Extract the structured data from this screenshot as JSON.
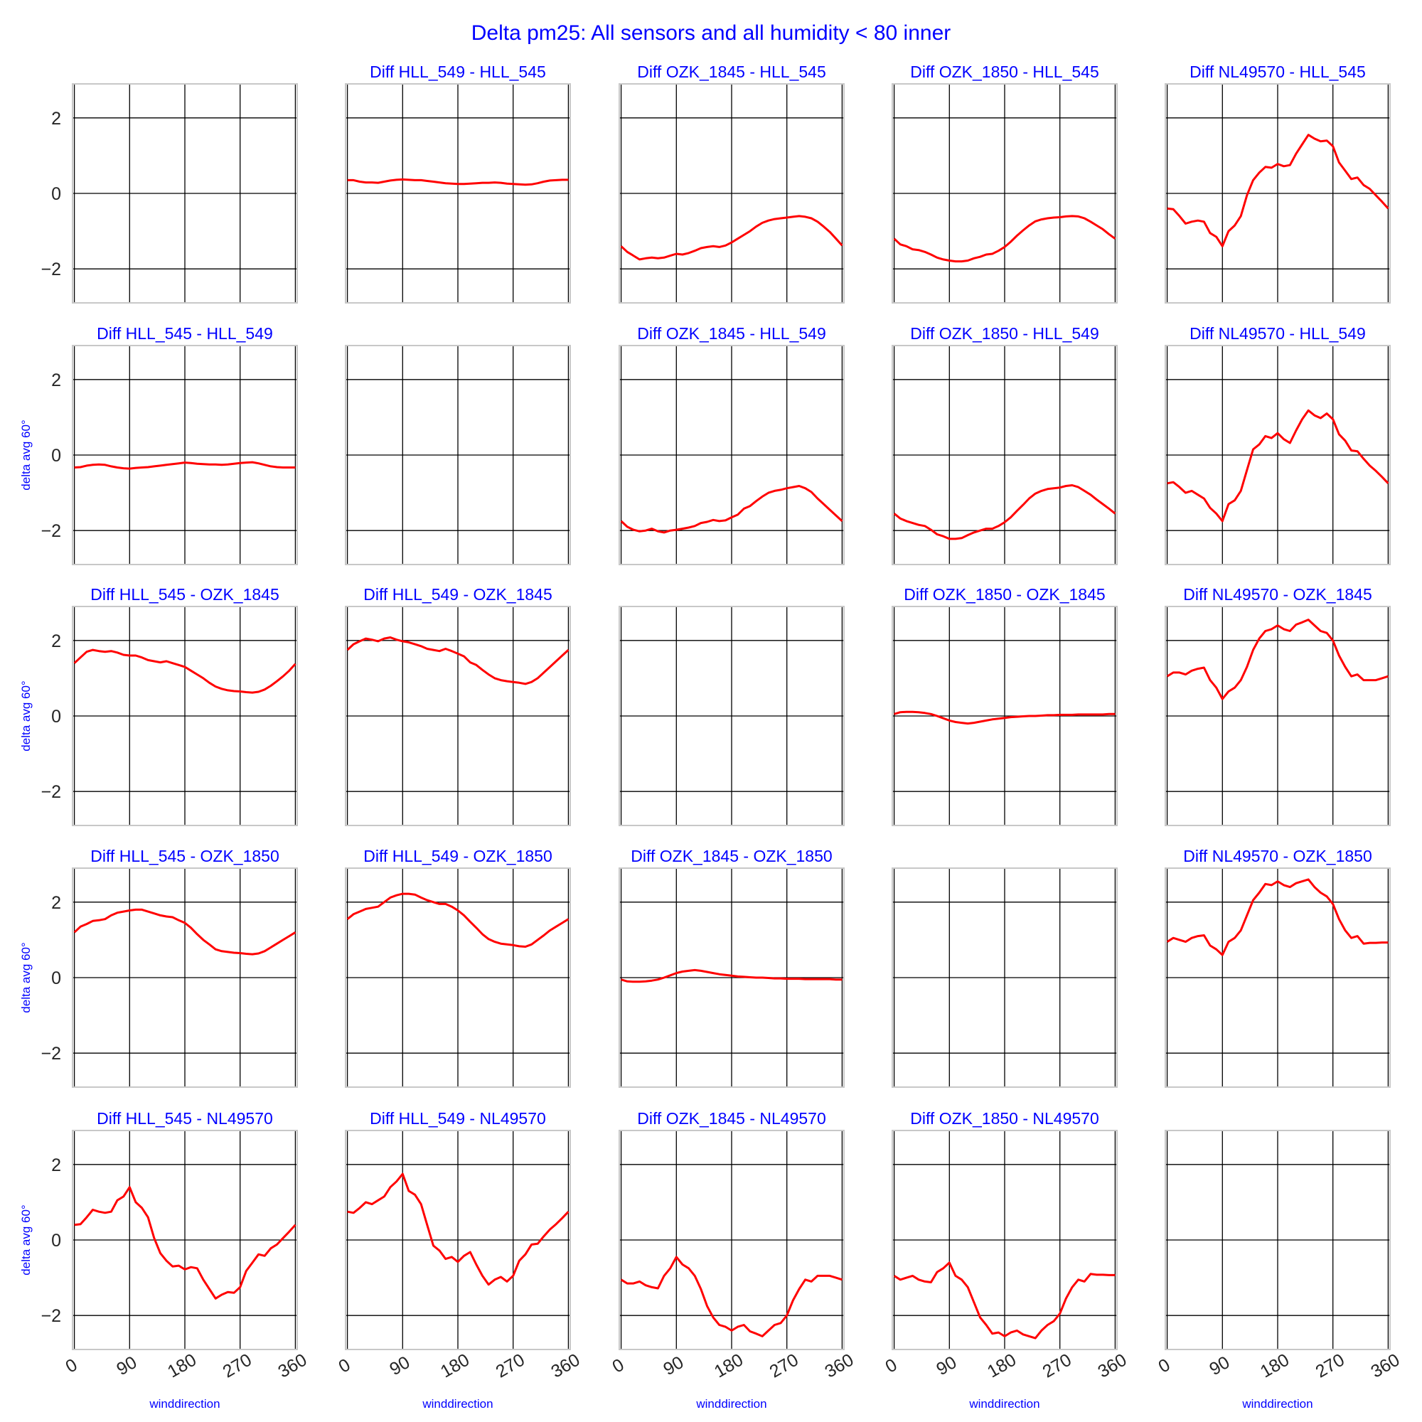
{
  "figure": {
    "title": "Delta pm25: All sensors and all humidity < 80 inner",
    "title_color": "#0000ff",
    "line_color": "#ff0000",
    "label_color": "#0000ff"
  },
  "chart_data": {
    "type": "line",
    "grid": true,
    "shared_y": true,
    "ylim": [
      -2.9,
      2.9
    ],
    "xlim": [
      -3,
      363
    ],
    "xticks": [
      0,
      90,
      180,
      270,
      360
    ],
    "yticks": [
      -2,
      0,
      2
    ],
    "ytick_labels": [
      "−2",
      "0",
      "2"
    ],
    "xlabel": "winddirection",
    "ylabel": "delta avg 60°",
    "x": [
      0,
      10,
      20,
      30,
      40,
      50,
      60,
      70,
      80,
      90,
      100,
      110,
      120,
      130,
      140,
      150,
      160,
      170,
      180,
      190,
      200,
      210,
      220,
      230,
      240,
      250,
      260,
      270,
      280,
      290,
      300,
      310,
      320,
      330,
      340,
      350,
      360
    ],
    "panels": [
      {
        "title": "",
        "values": null
      },
      {
        "title": "Diff HLL_549 - HLL_545",
        "values": [
          0.35,
          0.35,
          0.31,
          0.29,
          0.29,
          0.28,
          0.31,
          0.34,
          0.36,
          0.37,
          0.36,
          0.35,
          0.35,
          0.33,
          0.31,
          0.29,
          0.27,
          0.26,
          0.25,
          0.25,
          0.26,
          0.27,
          0.28,
          0.28,
          0.29,
          0.28,
          0.26,
          0.25,
          0.24,
          0.23,
          0.24,
          0.27,
          0.31,
          0.34,
          0.35,
          0.36,
          0.36
        ]
      },
      {
        "title": "Diff OZK_1845 - HLL_545",
        "values": [
          -1.4,
          -1.55,
          -1.65,
          -1.75,
          -1.72,
          -1.7,
          -1.72,
          -1.7,
          -1.65,
          -1.6,
          -1.62,
          -1.58,
          -1.52,
          -1.45,
          -1.42,
          -1.4,
          -1.42,
          -1.38,
          -1.3,
          -1.2,
          -1.1,
          -1.0,
          -0.88,
          -0.78,
          -0.72,
          -0.68,
          -0.66,
          -0.64,
          -0.62,
          -0.6,
          -0.62,
          -0.66,
          -0.75,
          -0.88,
          -1.02,
          -1.2,
          -1.38
        ]
      },
      {
        "title": "Diff OZK_1850 - HLL_545",
        "values": [
          -1.2,
          -1.35,
          -1.4,
          -1.48,
          -1.5,
          -1.55,
          -1.62,
          -1.7,
          -1.75,
          -1.78,
          -1.8,
          -1.8,
          -1.78,
          -1.72,
          -1.68,
          -1.62,
          -1.6,
          -1.52,
          -1.42,
          -1.28,
          -1.12,
          -0.98,
          -0.85,
          -0.74,
          -0.69,
          -0.66,
          -0.64,
          -0.63,
          -0.61,
          -0.6,
          -0.61,
          -0.66,
          -0.75,
          -0.85,
          -0.95,
          -1.08,
          -1.2
        ]
      },
      {
        "title": "Diff NL49570 - HLL_545",
        "values": [
          -0.4,
          -0.42,
          -0.6,
          -0.8,
          -0.75,
          -0.72,
          -0.75,
          -1.05,
          -1.15,
          -1.4,
          -1.0,
          -0.85,
          -0.6,
          -0.05,
          0.35,
          0.55,
          0.7,
          0.68,
          0.78,
          0.72,
          0.75,
          1.05,
          1.3,
          1.55,
          1.45,
          1.38,
          1.4,
          1.25,
          0.82,
          0.6,
          0.38,
          0.42,
          0.22,
          0.12,
          -0.05,
          -0.22,
          -0.4
        ]
      },
      {
        "title": "Diff HLL_545 - HLL_549",
        "values": [
          -0.33,
          -0.32,
          -0.28,
          -0.26,
          -0.25,
          -0.26,
          -0.3,
          -0.33,
          -0.35,
          -0.36,
          -0.34,
          -0.33,
          -0.32,
          -0.3,
          -0.28,
          -0.26,
          -0.24,
          -0.22,
          -0.2,
          -0.21,
          -0.23,
          -0.24,
          -0.25,
          -0.25,
          -0.26,
          -0.25,
          -0.23,
          -0.21,
          -0.2,
          -0.19,
          -0.22,
          -0.26,
          -0.3,
          -0.32,
          -0.33,
          -0.33,
          -0.33
        ]
      },
      {
        "title": "",
        "values": null
      },
      {
        "title": "Diff OZK_1845 - HLL_549",
        "values": [
          -1.75,
          -1.9,
          -1.98,
          -2.02,
          -2.0,
          -1.95,
          -2.02,
          -2.05,
          -2.0,
          -1.98,
          -1.95,
          -1.92,
          -1.88,
          -1.8,
          -1.77,
          -1.72,
          -1.75,
          -1.73,
          -1.65,
          -1.58,
          -1.42,
          -1.35,
          -1.22,
          -1.1,
          -1.0,
          -0.95,
          -0.92,
          -0.88,
          -0.85,
          -0.82,
          -0.88,
          -0.98,
          -1.15,
          -1.3,
          -1.45,
          -1.6,
          -1.75
        ]
      },
      {
        "title": "Diff OZK_1850 - HLL_549",
        "values": [
          -1.55,
          -1.68,
          -1.75,
          -1.8,
          -1.85,
          -1.88,
          -1.98,
          -2.1,
          -2.15,
          -2.22,
          -2.22,
          -2.2,
          -2.12,
          -2.05,
          -2.0,
          -1.95,
          -1.95,
          -1.88,
          -1.78,
          -1.65,
          -1.48,
          -1.32,
          -1.15,
          -1.02,
          -0.95,
          -0.9,
          -0.88,
          -0.86,
          -0.82,
          -0.8,
          -0.85,
          -0.95,
          -1.05,
          -1.18,
          -1.3,
          -1.42,
          -1.55
        ]
      },
      {
        "title": "Diff NL49570 - HLL_549",
        "values": [
          -0.75,
          -0.72,
          -0.85,
          -1.0,
          -0.95,
          -1.05,
          -1.15,
          -1.4,
          -1.55,
          -1.75,
          -1.3,
          -1.2,
          -0.95,
          -0.4,
          0.15,
          0.28,
          0.5,
          0.45,
          0.58,
          0.42,
          0.32,
          0.65,
          0.95,
          1.18,
          1.05,
          0.98,
          1.1,
          0.95,
          0.55,
          0.38,
          0.12,
          0.1,
          -0.1,
          -0.28,
          -0.42,
          -0.58,
          -0.75
        ]
      },
      {
        "title": "Diff HLL_545 - OZK_1845",
        "values": [
          1.4,
          1.55,
          1.7,
          1.75,
          1.72,
          1.7,
          1.72,
          1.68,
          1.62,
          1.6,
          1.6,
          1.55,
          1.48,
          1.45,
          1.42,
          1.45,
          1.4,
          1.35,
          1.3,
          1.2,
          1.1,
          1.0,
          0.88,
          0.78,
          0.72,
          0.68,
          0.66,
          0.65,
          0.63,
          0.62,
          0.64,
          0.7,
          0.8,
          0.92,
          1.05,
          1.2,
          1.38
        ]
      },
      {
        "title": "Diff HLL_549 - OZK_1845",
        "values": [
          1.75,
          1.9,
          1.98,
          2.05,
          2.02,
          1.98,
          2.05,
          2.08,
          2.02,
          1.98,
          1.95,
          1.9,
          1.85,
          1.78,
          1.75,
          1.72,
          1.78,
          1.72,
          1.65,
          1.58,
          1.42,
          1.35,
          1.22,
          1.1,
          1.0,
          0.95,
          0.92,
          0.9,
          0.88,
          0.85,
          0.9,
          1.0,
          1.15,
          1.3,
          1.45,
          1.6,
          1.75
        ]
      },
      {
        "title": "",
        "values": null
      },
      {
        "title": "Diff OZK_1850 - OZK_1845",
        "values": [
          0.05,
          0.1,
          0.11,
          0.11,
          0.1,
          0.08,
          0.05,
          0.0,
          -0.06,
          -0.12,
          -0.16,
          -0.18,
          -0.2,
          -0.18,
          -0.15,
          -0.12,
          -0.09,
          -0.07,
          -0.05,
          -0.03,
          -0.02,
          -0.01,
          0.0,
          0.0,
          0.01,
          0.02,
          0.02,
          0.03,
          0.03,
          0.03,
          0.04,
          0.04,
          0.04,
          0.04,
          0.04,
          0.05,
          0.05
        ]
      },
      {
        "title": "Diff NL49570 - OZK_1845",
        "values": [
          1.05,
          1.15,
          1.15,
          1.1,
          1.2,
          1.25,
          1.28,
          0.95,
          0.75,
          0.45,
          0.65,
          0.75,
          0.95,
          1.3,
          1.75,
          2.05,
          2.25,
          2.3,
          2.4,
          2.3,
          2.25,
          2.42,
          2.48,
          2.55,
          2.4,
          2.25,
          2.2,
          2.0,
          1.6,
          1.3,
          1.05,
          1.1,
          0.95,
          0.95,
          0.95,
          1.0,
          1.05
        ]
      },
      {
        "title": "Diff HLL_545 - OZK_1850",
        "values": [
          1.2,
          1.35,
          1.42,
          1.5,
          1.52,
          1.55,
          1.65,
          1.72,
          1.75,
          1.78,
          1.8,
          1.8,
          1.75,
          1.7,
          1.65,
          1.62,
          1.6,
          1.52,
          1.45,
          1.32,
          1.15,
          1.0,
          0.88,
          0.75,
          0.7,
          0.68,
          0.66,
          0.65,
          0.63,
          0.62,
          0.64,
          0.7,
          0.8,
          0.9,
          1.0,
          1.1,
          1.2
        ]
      },
      {
        "title": "Diff HLL_549 - OZK_1850",
        "values": [
          1.55,
          1.68,
          1.75,
          1.82,
          1.85,
          1.88,
          2.0,
          2.12,
          2.18,
          2.22,
          2.22,
          2.2,
          2.12,
          2.05,
          2.0,
          1.95,
          1.95,
          1.88,
          1.78,
          1.65,
          1.48,
          1.32,
          1.15,
          1.02,
          0.95,
          0.9,
          0.88,
          0.86,
          0.83,
          0.82,
          0.88,
          1.0,
          1.12,
          1.25,
          1.35,
          1.45,
          1.55
        ]
      },
      {
        "title": "Diff OZK_1845 - OZK_1850",
        "values": [
          -0.05,
          -0.1,
          -0.11,
          -0.11,
          -0.1,
          -0.08,
          -0.05,
          0.0,
          0.06,
          0.12,
          0.16,
          0.18,
          0.2,
          0.18,
          0.15,
          0.12,
          0.09,
          0.07,
          0.05,
          0.03,
          0.02,
          0.01,
          0.0,
          0.0,
          -0.01,
          -0.02,
          -0.02,
          -0.03,
          -0.03,
          -0.03,
          -0.04,
          -0.04,
          -0.04,
          -0.04,
          -0.04,
          -0.05,
          -0.05
        ]
      },
      {
        "title": "",
        "values": null
      },
      {
        "title": "Diff NL49570 - OZK_1850",
        "values": [
          0.95,
          1.05,
          1.0,
          0.95,
          1.05,
          1.1,
          1.12,
          0.85,
          0.75,
          0.6,
          0.95,
          1.05,
          1.25,
          1.65,
          2.05,
          2.25,
          2.48,
          2.45,
          2.55,
          2.45,
          2.4,
          2.5,
          2.55,
          2.6,
          2.4,
          2.25,
          2.15,
          1.95,
          1.55,
          1.25,
          1.05,
          1.1,
          0.9,
          0.92,
          0.92,
          0.93,
          0.93
        ]
      },
      {
        "title": "Diff HLL_545 - NL49570",
        "values": [
          0.4,
          0.42,
          0.6,
          0.8,
          0.75,
          0.72,
          0.75,
          1.05,
          1.15,
          1.4,
          1.0,
          0.85,
          0.6,
          0.05,
          -0.35,
          -0.55,
          -0.7,
          -0.68,
          -0.78,
          -0.72,
          -0.75,
          -1.05,
          -1.3,
          -1.55,
          -1.45,
          -1.38,
          -1.4,
          -1.25,
          -0.82,
          -0.6,
          -0.38,
          -0.42,
          -0.22,
          -0.12,
          0.05,
          0.22,
          0.4
        ]
      },
      {
        "title": "Diff HLL_549 - NL49570",
        "values": [
          0.75,
          0.72,
          0.85,
          1.0,
          0.95,
          1.05,
          1.15,
          1.4,
          1.55,
          1.75,
          1.3,
          1.2,
          0.95,
          0.4,
          -0.15,
          -0.28,
          -0.5,
          -0.45,
          -0.58,
          -0.42,
          -0.32,
          -0.65,
          -0.95,
          -1.18,
          -1.05,
          -0.98,
          -1.1,
          -0.95,
          -0.55,
          -0.38,
          -0.12,
          -0.1,
          0.1,
          0.28,
          0.42,
          0.58,
          0.75
        ]
      },
      {
        "title": "Diff OZK_1845 - NL49570",
        "values": [
          -1.05,
          -1.15,
          -1.15,
          -1.1,
          -1.2,
          -1.25,
          -1.28,
          -0.95,
          -0.75,
          -0.45,
          -0.65,
          -0.75,
          -0.95,
          -1.3,
          -1.75,
          -2.05,
          -2.25,
          -2.3,
          -2.4,
          -2.3,
          -2.25,
          -2.42,
          -2.48,
          -2.55,
          -2.4,
          -2.25,
          -2.2,
          -2.0,
          -1.6,
          -1.3,
          -1.05,
          -1.1,
          -0.95,
          -0.95,
          -0.95,
          -1.0,
          -1.05
        ]
      },
      {
        "title": "Diff OZK_1850 - NL49570",
        "values": [
          -0.95,
          -1.05,
          -1.0,
          -0.95,
          -1.05,
          -1.1,
          -1.12,
          -0.85,
          -0.75,
          -0.6,
          -0.95,
          -1.05,
          -1.25,
          -1.65,
          -2.05,
          -2.25,
          -2.48,
          -2.45,
          -2.55,
          -2.45,
          -2.4,
          -2.5,
          -2.55,
          -2.6,
          -2.4,
          -2.25,
          -2.15,
          -1.95,
          -1.55,
          -1.25,
          -1.05,
          -1.1,
          -0.9,
          -0.92,
          -0.92,
          -0.93,
          -0.93
        ]
      },
      {
        "title": "",
        "values": null
      }
    ]
  }
}
